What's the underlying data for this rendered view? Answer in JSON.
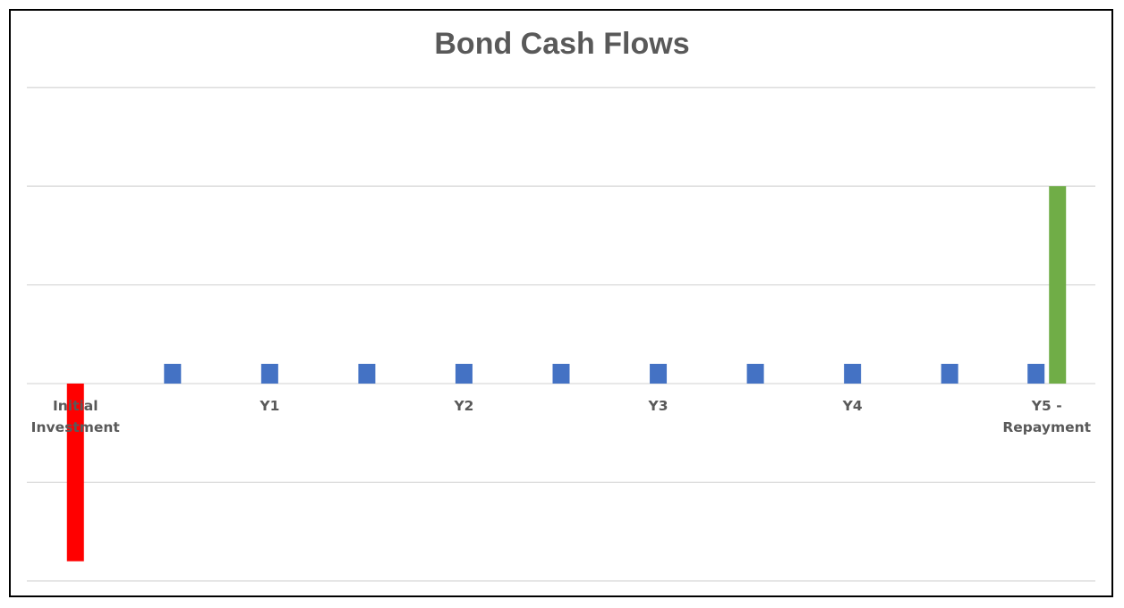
{
  "chart_data": {
    "type": "bar",
    "title": "Bond Cash Flows",
    "xlabel": "",
    "ylabel": "",
    "grid": true,
    "legend": "none",
    "ylim": [
      -2,
      3
    ],
    "gridlines": [
      -2,
      -1,
      0,
      1,
      2,
      3
    ],
    "axis_labels": [
      {
        "index": 0,
        "lines": [
          "Initial",
          "Investment"
        ]
      },
      {
        "index": 2,
        "lines": [
          "Y1"
        ]
      },
      {
        "index": 4,
        "lines": [
          "Y2"
        ]
      },
      {
        "index": 6,
        "lines": [
          "Y3"
        ]
      },
      {
        "index": 8,
        "lines": [
          "Y4"
        ]
      },
      {
        "index": 10,
        "lines": [
          "Y5 -",
          "Repayment"
        ]
      }
    ],
    "series": [
      {
        "role": "investment",
        "color": "#FF0000",
        "values": [
          -1.8,
          0,
          0,
          0,
          0,
          0,
          0,
          0,
          0,
          0,
          0
        ]
      },
      {
        "role": "coupon",
        "color": "#4472C4",
        "values": [
          0,
          0.2,
          0.2,
          0.2,
          0.2,
          0.2,
          0.2,
          0.2,
          0.2,
          0.2,
          0.2
        ]
      },
      {
        "role": "repayment",
        "color": "#70AD47",
        "values": [
          0,
          0,
          0,
          0,
          0,
          0,
          0,
          0,
          0,
          0,
          2
        ]
      }
    ]
  }
}
